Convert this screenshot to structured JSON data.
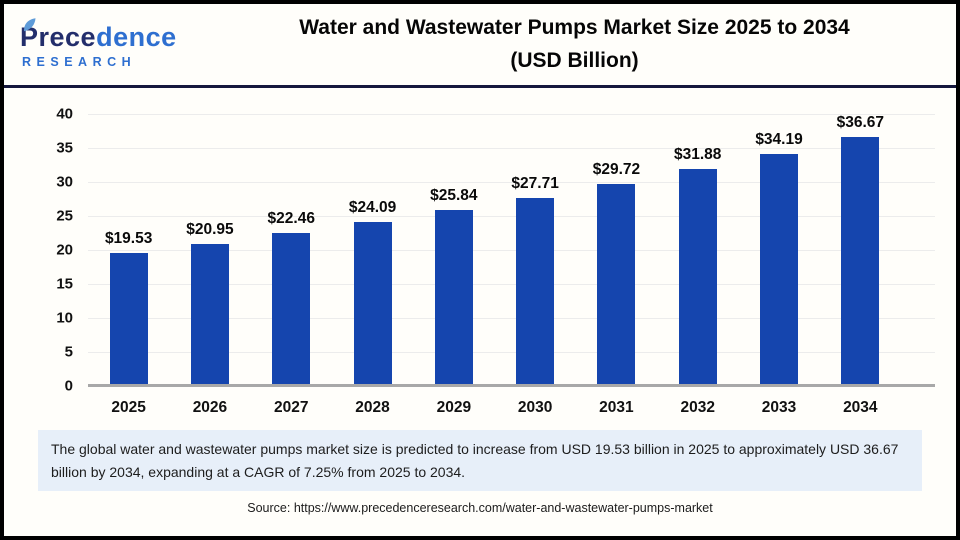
{
  "header": {
    "logo": {
      "brand_first": "Prece",
      "brand_second": "dence",
      "subtitle": "RESEARCH"
    },
    "title_line1": "Water and Wastewater Pumps Market Size 2025 to 2034",
    "title_line2": "(USD Billion)"
  },
  "chart_data": {
    "type": "bar",
    "title": "Water and Wastewater Pumps Market Size 2025 to 2034 (USD Billion)",
    "categories": [
      "2025",
      "2026",
      "2027",
      "2028",
      "2029",
      "2030",
      "2031",
      "2032",
      "2033",
      "2034"
    ],
    "values": [
      19.53,
      20.95,
      22.46,
      24.09,
      25.84,
      27.71,
      29.72,
      31.88,
      34.19,
      36.67
    ],
    "value_prefix": "$",
    "xlabel": "",
    "ylabel": "",
    "ylim": [
      0,
      40
    ],
    "ytick_step": 5,
    "grid": true,
    "legend": false,
    "bar_color": "#1545ae"
  },
  "footer": {
    "summary": "The global water and wastewater pumps market size is predicted to increase from USD 19.53 billion in 2025 to approximately USD 36.67 billion by 2034, expanding at a CAGR of 7.25% from 2025 to 2034.",
    "source": "Source: https://www.precedenceresearch.com/water-and-wastewater-pumps-market"
  },
  "colors": {
    "bar_blue": "#1545ae",
    "brand_dark_navy": "#232e6b",
    "brand_light_blue": "#2e6fd0",
    "header_rule": "#15173d",
    "summary_bg": "#e7eff9",
    "baseline_gray": "#a8a8a8"
  }
}
